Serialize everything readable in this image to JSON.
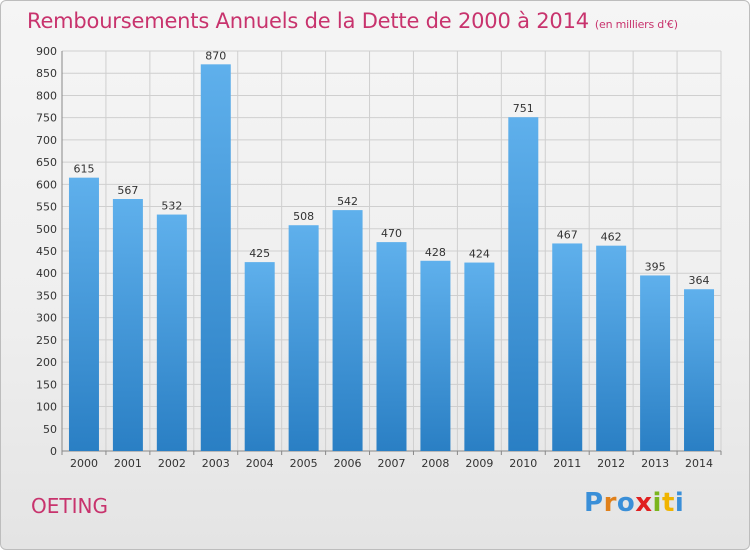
{
  "header": {
    "title": "Remboursements Annuels de la Dette de 2000 à 2014",
    "unit": "(en milliers d'€)"
  },
  "footer": {
    "city": "OETING",
    "logo_text": "Proxiti",
    "logo_colors": [
      "#3a8fd8",
      "#e0801a",
      "#3a8fd8",
      "#e02020",
      "#7ab51d",
      "#f0b400",
      "#3a8fd8"
    ]
  },
  "colors": {
    "title": "#c8336d",
    "bar_top": "#5fb0ec",
    "bar_bottom": "#2a7fc4",
    "grid": "#cfcfcf",
    "axis_text": "#333333"
  },
  "chart_data": {
    "type": "bar",
    "categories": [
      "2000",
      "2001",
      "2002",
      "2003",
      "2004",
      "2005",
      "2006",
      "2007",
      "2008",
      "2009",
      "2010",
      "2011",
      "2012",
      "2013",
      "2014"
    ],
    "values": [
      615,
      567,
      532,
      870,
      425,
      508,
      542,
      470,
      428,
      424,
      751,
      467,
      462,
      395,
      364
    ],
    "data_labels": [
      "615",
      "567",
      "532",
      "870",
      "425",
      "508",
      "542",
      "470",
      "428",
      "424",
      "751",
      "467",
      "462",
      "395",
      "364"
    ],
    "ylim": [
      0,
      900
    ],
    "yticks": [
      0,
      50,
      100,
      150,
      200,
      250,
      300,
      350,
      400,
      450,
      500,
      550,
      600,
      650,
      700,
      750,
      800,
      850,
      900
    ],
    "grid": true,
    "legend": "none"
  }
}
